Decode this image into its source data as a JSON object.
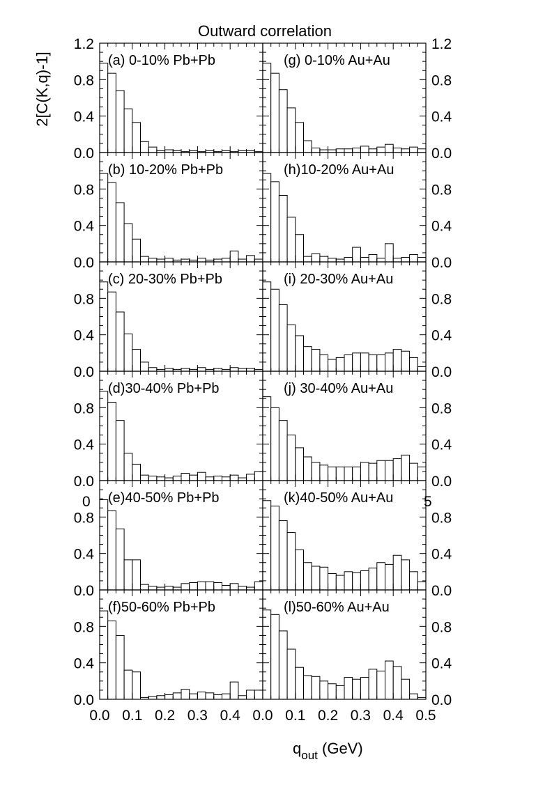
{
  "figure": {
    "title": "Outward correlation",
    "ylabel": "2[C(K,q)-1]",
    "xlabel_main": "q",
    "xlabel_sub": "out",
    "xlabel_unit": " (GeV)",
    "stray_labels": [
      "0",
      "5"
    ]
  },
  "chart_data": {
    "type": "bar",
    "title": "Outward correlation",
    "ylabel": "2[C(K,q)-1]",
    "xlabel": "q_out (GeV)",
    "xlim": [
      0.0,
      0.5
    ],
    "ylim": [
      0.0,
      1.2
    ],
    "x_ticks": [
      "0.0",
      "0.1",
      "0.2",
      "0.3",
      "0.4",
      "0.5"
    ],
    "y_ticks_top": [
      "0.0",
      "0.4",
      "0.8",
      "1.2"
    ],
    "y_ticks": [
      "0.0",
      "0.4",
      "0.8"
    ],
    "bin_edges": [
      0.0,
      0.025,
      0.05,
      0.075,
      0.1,
      0.125,
      0.15,
      0.175,
      0.2,
      0.225,
      0.25,
      0.275,
      0.3,
      0.325,
      0.35,
      0.375,
      0.4,
      0.425,
      0.45,
      0.475,
      0.5
    ],
    "grid": false,
    "panels": [
      {
        "label": "(a) 0-10% Pb+Pb",
        "column": "left",
        "row": 0,
        "values": [
          0.98,
          0.87,
          0.68,
          0.48,
          0.33,
          0.12,
          0.06,
          0.02,
          0.03,
          0.02,
          0.01,
          0.02,
          0.01,
          0.02,
          0.01,
          0.02,
          0.01,
          0.02,
          0.02,
          0.01
        ]
      },
      {
        "label": "(b) 10-20% Pb+Pb",
        "column": "left",
        "row": 1,
        "values": [
          0.97,
          0.87,
          0.65,
          0.42,
          0.25,
          0.06,
          0.04,
          0.03,
          0.04,
          0.02,
          0.03,
          0.02,
          0.04,
          0.02,
          0.03,
          0.04,
          0.12,
          0.03,
          0.07,
          0.03
        ]
      },
      {
        "label": "(c) 20-30% Pb+Pb",
        "column": "left",
        "row": 2,
        "values": [
          0.98,
          0.87,
          0.65,
          0.41,
          0.24,
          0.1,
          0.04,
          0.02,
          0.03,
          0.02,
          0.03,
          0.02,
          0.04,
          0.02,
          0.03,
          0.02,
          0.04,
          0.03,
          0.03,
          0.02
        ]
      },
      {
        "label": "(d)30-40% Pb+Pb",
        "column": "left",
        "row": 3,
        "values": [
          0.98,
          0.86,
          0.66,
          0.3,
          0.18,
          0.06,
          0.05,
          0.04,
          0.03,
          0.05,
          0.08,
          0.06,
          0.09,
          0.04,
          0.05,
          0.04,
          0.06,
          0.03,
          0.07,
          0.1
        ]
      },
      {
        "label": "(e)40-50% Pb+Pb",
        "column": "left",
        "row": 4,
        "values": [
          0.99,
          0.87,
          0.67,
          0.33,
          0.33,
          0.06,
          0.04,
          0.03,
          0.04,
          0.03,
          0.07,
          0.08,
          0.09,
          0.09,
          0.08,
          0.05,
          0.07,
          0.04,
          0.03,
          0.09
        ]
      },
      {
        "label": "(f)50-60% Pb+Pb",
        "column": "left",
        "row": 5,
        "values": [
          0.97,
          0.86,
          0.7,
          0.32,
          0.3,
          0.02,
          0.03,
          0.04,
          0.05,
          0.07,
          0.11,
          0.06,
          0.08,
          0.07,
          0.05,
          0.06,
          0.19,
          0.04,
          0.1,
          0.1
        ]
      },
      {
        "label": "(g) 0-10% Au+Au",
        "column": "right",
        "row": 0,
        "values": [
          0.98,
          0.87,
          0.69,
          0.49,
          0.33,
          0.13,
          0.05,
          0.03,
          0.03,
          0.04,
          0.04,
          0.05,
          0.07,
          0.04,
          0.06,
          0.09,
          0.05,
          0.04,
          0.06,
          0.04
        ]
      },
      {
        "label": "(h)10-20% Au+Au",
        "column": "right",
        "row": 1,
        "values": [
          0.97,
          0.88,
          0.73,
          0.49,
          0.3,
          0.06,
          0.09,
          0.06,
          0.04,
          0.03,
          0.05,
          0.16,
          0.05,
          0.08,
          0.04,
          0.2,
          0.04,
          0.05,
          0.08,
          0.05
        ]
      },
      {
        "label": "(i) 20-30% Au+Au",
        "column": "right",
        "row": 2,
        "values": [
          0.98,
          0.9,
          0.73,
          0.51,
          0.39,
          0.27,
          0.24,
          0.18,
          0.13,
          0.15,
          0.18,
          0.2,
          0.2,
          0.18,
          0.18,
          0.2,
          0.24,
          0.22,
          0.15,
          0.05
        ]
      },
      {
        "label": "(j) 30-40% Au+Au",
        "column": "right",
        "row": 3,
        "values": [
          0.92,
          0.8,
          0.66,
          0.5,
          0.36,
          0.26,
          0.2,
          0.17,
          0.15,
          0.15,
          0.15,
          0.15,
          0.2,
          0.19,
          0.22,
          0.22,
          0.24,
          0.28,
          0.19,
          0.15
        ]
      },
      {
        "label": "(k)40-50% Au+Au",
        "column": "right",
        "row": 4,
        "values": [
          0.98,
          0.92,
          0.76,
          0.63,
          0.44,
          0.3,
          0.26,
          0.25,
          0.18,
          0.16,
          0.2,
          0.19,
          0.21,
          0.24,
          0.3,
          0.28,
          0.38,
          0.33,
          0.2,
          0.09
        ]
      },
      {
        "label": "(l)50-60% Au+Au",
        "column": "right",
        "row": 5,
        "values": [
          0.98,
          0.93,
          0.75,
          0.55,
          0.35,
          0.26,
          0.25,
          0.2,
          0.17,
          0.15,
          0.24,
          0.22,
          0.24,
          0.33,
          0.31,
          0.42,
          0.36,
          0.22,
          0.06,
          0.02
        ]
      }
    ]
  }
}
